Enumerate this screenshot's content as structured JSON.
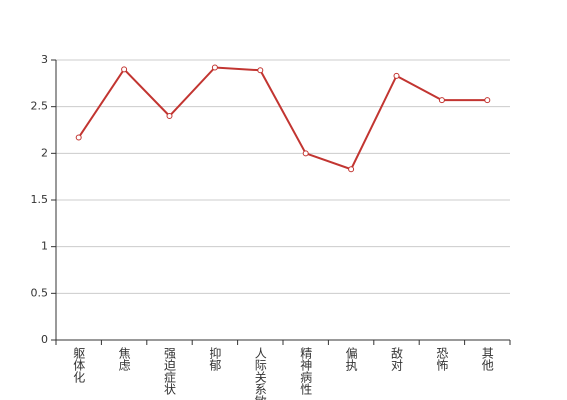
{
  "chart_data": {
    "type": "line",
    "categories": [
      "躯体化",
      "焦虑",
      "强迫症状",
      "抑郁",
      "人际关系敏感",
      "精神病性",
      "偏执",
      "敌对",
      "恐怖",
      "其他"
    ],
    "values": [
      2.17,
      2.9,
      2.4,
      2.92,
      2.89,
      2.0,
      1.83,
      2.83,
      2.57,
      2.57
    ],
    "color": "#c23531",
    "ylim": [
      0,
      3
    ],
    "yticks": [
      0,
      0.5,
      1,
      1.5,
      2,
      2.5,
      3
    ],
    "grid": true
  }
}
